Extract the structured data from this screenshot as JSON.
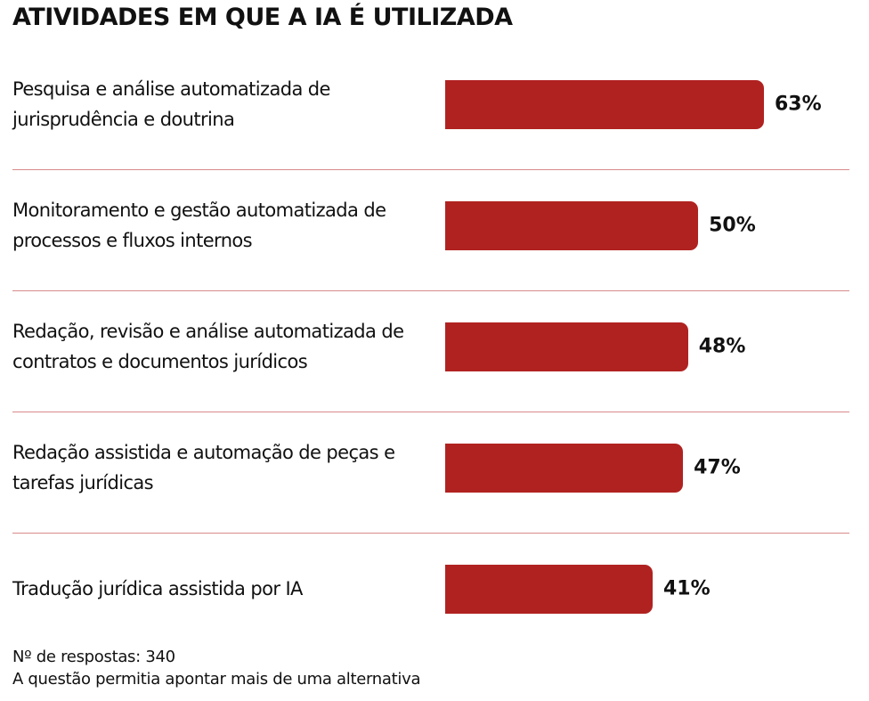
{
  "title": "ATIVIDADES EM QUE A IA É UTILIZADA",
  "chart_data": {
    "type": "bar",
    "orientation": "horizontal",
    "title": "ATIVIDADES EM QUE A IA É UTILIZADA",
    "categories": [
      "Pesquisa e análise automatizada de jurisprudência e doutrina",
      "Monitoramento e gestão automatizada de processos e fluxos internos",
      "Redação, revisão e análise automatizada de contratos e documentos jurídicos",
      "Redação assistida e automação de peças e tarefas jurídicas",
      "Tradução jurídica assistida por IA"
    ],
    "values": [
      63,
      50,
      48,
      47,
      41
    ],
    "data_labels": [
      "63%",
      "50%",
      "48%",
      "47%",
      "41%"
    ],
    "unit": "%",
    "xlim": [
      0,
      100
    ],
    "grid": false,
    "bar_color": "#b02220",
    "separator_color": "#d98a8a"
  },
  "notes": [
    "Nº de respostas: 340",
    "A questão permitia apontar mais de uma alternativa"
  ]
}
